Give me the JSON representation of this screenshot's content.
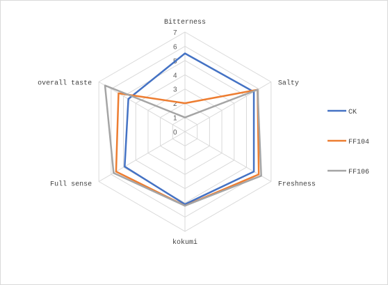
{
  "chart_data": {
    "type": "radar",
    "title": "",
    "axes": [
      "Bitterness",
      "Salty",
      "Freshness",
      "kokumi",
      "Full sense",
      "overall taste"
    ],
    "range": [
      0,
      7
    ],
    "ticks": [
      "0",
      "1",
      "2",
      "3",
      "4",
      "5",
      "6",
      "7"
    ],
    "grid": true,
    "legend_position": "right",
    "series": [
      {
        "name": "CK",
        "color": "#4472C4",
        "values": [
          5.5,
          5.6,
          5.6,
          5.1,
          4.9,
          4.6
        ]
      },
      {
        "name": "FF104",
        "color": "#ED7D31",
        "values": [
          2.0,
          5.9,
          6.0,
          5.2,
          5.6,
          5.4
        ]
      },
      {
        "name": "FF106",
        "color": "#A5A5A5",
        "values": [
          1.0,
          5.9,
          6.2,
          5.2,
          5.8,
          6.5
        ]
      }
    ]
  }
}
